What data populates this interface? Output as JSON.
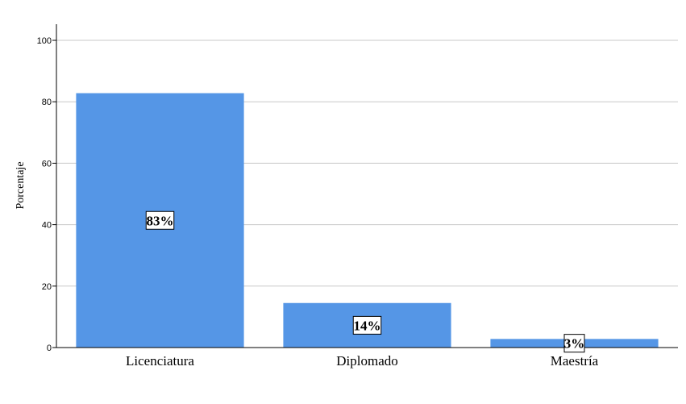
{
  "chart_data": {
    "type": "bar",
    "categories": [
      "Licenciatura",
      "Diplomado",
      "Maestría"
    ],
    "values": [
      82.8,
      14.5,
      2.8
    ],
    "data_labels": [
      "83%",
      "14%",
      "3%"
    ],
    "title": "",
    "xlabel": "",
    "ylabel": "Porcentaje",
    "ylim": [
      0,
      100
    ],
    "yticks": [
      0,
      20,
      40,
      60,
      80,
      100
    ],
    "ytick_labels": [
      "0",
      "20",
      "40",
      "60",
      "80",
      "100"
    ],
    "grid": true,
    "bar_color": "#5596e6",
    "grid_color": "#c8c8c8"
  }
}
